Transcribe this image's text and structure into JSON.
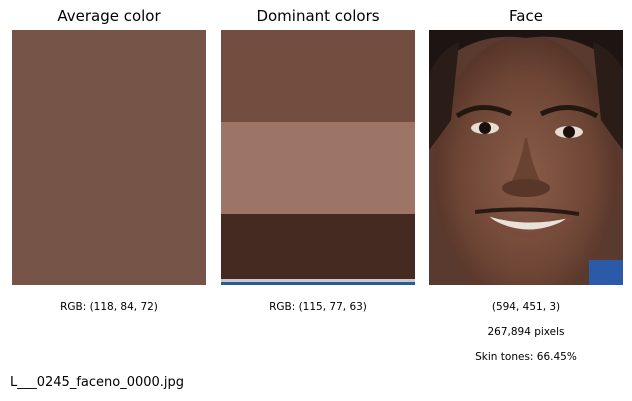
{
  "panels": {
    "average": {
      "title": "Average color",
      "color": "#765448",
      "caption": "RGB: (118, 84, 72)"
    },
    "dominant": {
      "title": "Dominant colors",
      "caption": "RGB: (115, 77, 63)",
      "bands": [
        {
          "color": "#734d3f",
          "share": 0.36
        },
        {
          "color": "#9c7566",
          "share": 0.36
        },
        {
          "color": "#452a22",
          "share": 0.255
        },
        {
          "color": "#c9c9c9",
          "share": 0.012
        },
        {
          "color": "#2a5a9a",
          "share": 0.013
        }
      ]
    },
    "face": {
      "title": "Face",
      "shape_caption": "(594, 451, 3)",
      "pixels_caption": "267,894 pixels",
      "skin_caption": "Skin tones: 66.45%"
    }
  },
  "footer": {
    "filename": "L___0245_faceno_0000.jpg"
  }
}
